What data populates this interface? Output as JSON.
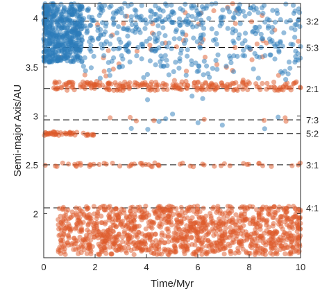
{
  "chart_data": {
    "type": "scatter",
    "xlabel": "Time/Myr",
    "ylabel": "Semi-major Axis/AU",
    "xlim": [
      0,
      10
    ],
    "ylim": [
      1.55,
      4.15
    ],
    "x_ticks": [
      0,
      2,
      4,
      6,
      8,
      10
    ],
    "y_ticks": [
      2,
      2.5,
      3,
      3.5,
      4
    ],
    "x_tick_labels": [
      "0",
      "2",
      "4",
      "6",
      "8",
      "10"
    ],
    "y_tick_labels": [
      "2",
      "2.5",
      "3",
      "3.5",
      "4"
    ],
    "grid": false,
    "resonances": [
      {
        "label": "3:2",
        "a": 3.97
      },
      {
        "label": "5:3",
        "a": 3.7
      },
      {
        "label": "2:1",
        "a": 3.28
      },
      {
        "label": "7:3",
        "a": 2.96
      },
      {
        "label": "5:2",
        "a": 2.82
      },
      {
        "label": "3:1",
        "a": 2.5
      },
      {
        "label": "4:1",
        "a": 2.06
      }
    ],
    "series": [
      {
        "color": "#2b7bba",
        "regions": [
          {
            "x": [
              0.0,
              1.5
            ],
            "y": [
              3.55,
              4.15
            ],
            "count": 500
          },
          {
            "x": [
              1.5,
              10.0
            ],
            "y": [
              3.35,
              4.15
            ],
            "count": 420
          },
          {
            "x": [
              0.3,
              10.0
            ],
            "y": [
              2.85,
              3.35
            ],
            "count": 12
          }
        ]
      },
      {
        "color": "#dd5a2a",
        "regions": [
          {
            "x": [
              0.55,
              10.0
            ],
            "y": [
              1.58,
              2.08
            ],
            "count": 1150
          },
          {
            "x": [
              0.3,
              10.0
            ],
            "y": [
              3.26,
              3.35
            ],
            "count": 230
          },
          {
            "x": [
              0.0,
              10.0
            ],
            "y": [
              2.48,
              2.52
            ],
            "count": 55
          },
          {
            "x": [
              0.0,
              2.0
            ],
            "y": [
              2.8,
              2.84
            ],
            "count": 45
          },
          {
            "x": [
              2.0,
              10.0
            ],
            "y": [
              2.93,
              2.99
            ],
            "count": 8
          },
          {
            "x": [
              0.0,
              10.0
            ],
            "y": [
              3.35,
              4.15
            ],
            "count": 55
          }
        ]
      }
    ]
  }
}
